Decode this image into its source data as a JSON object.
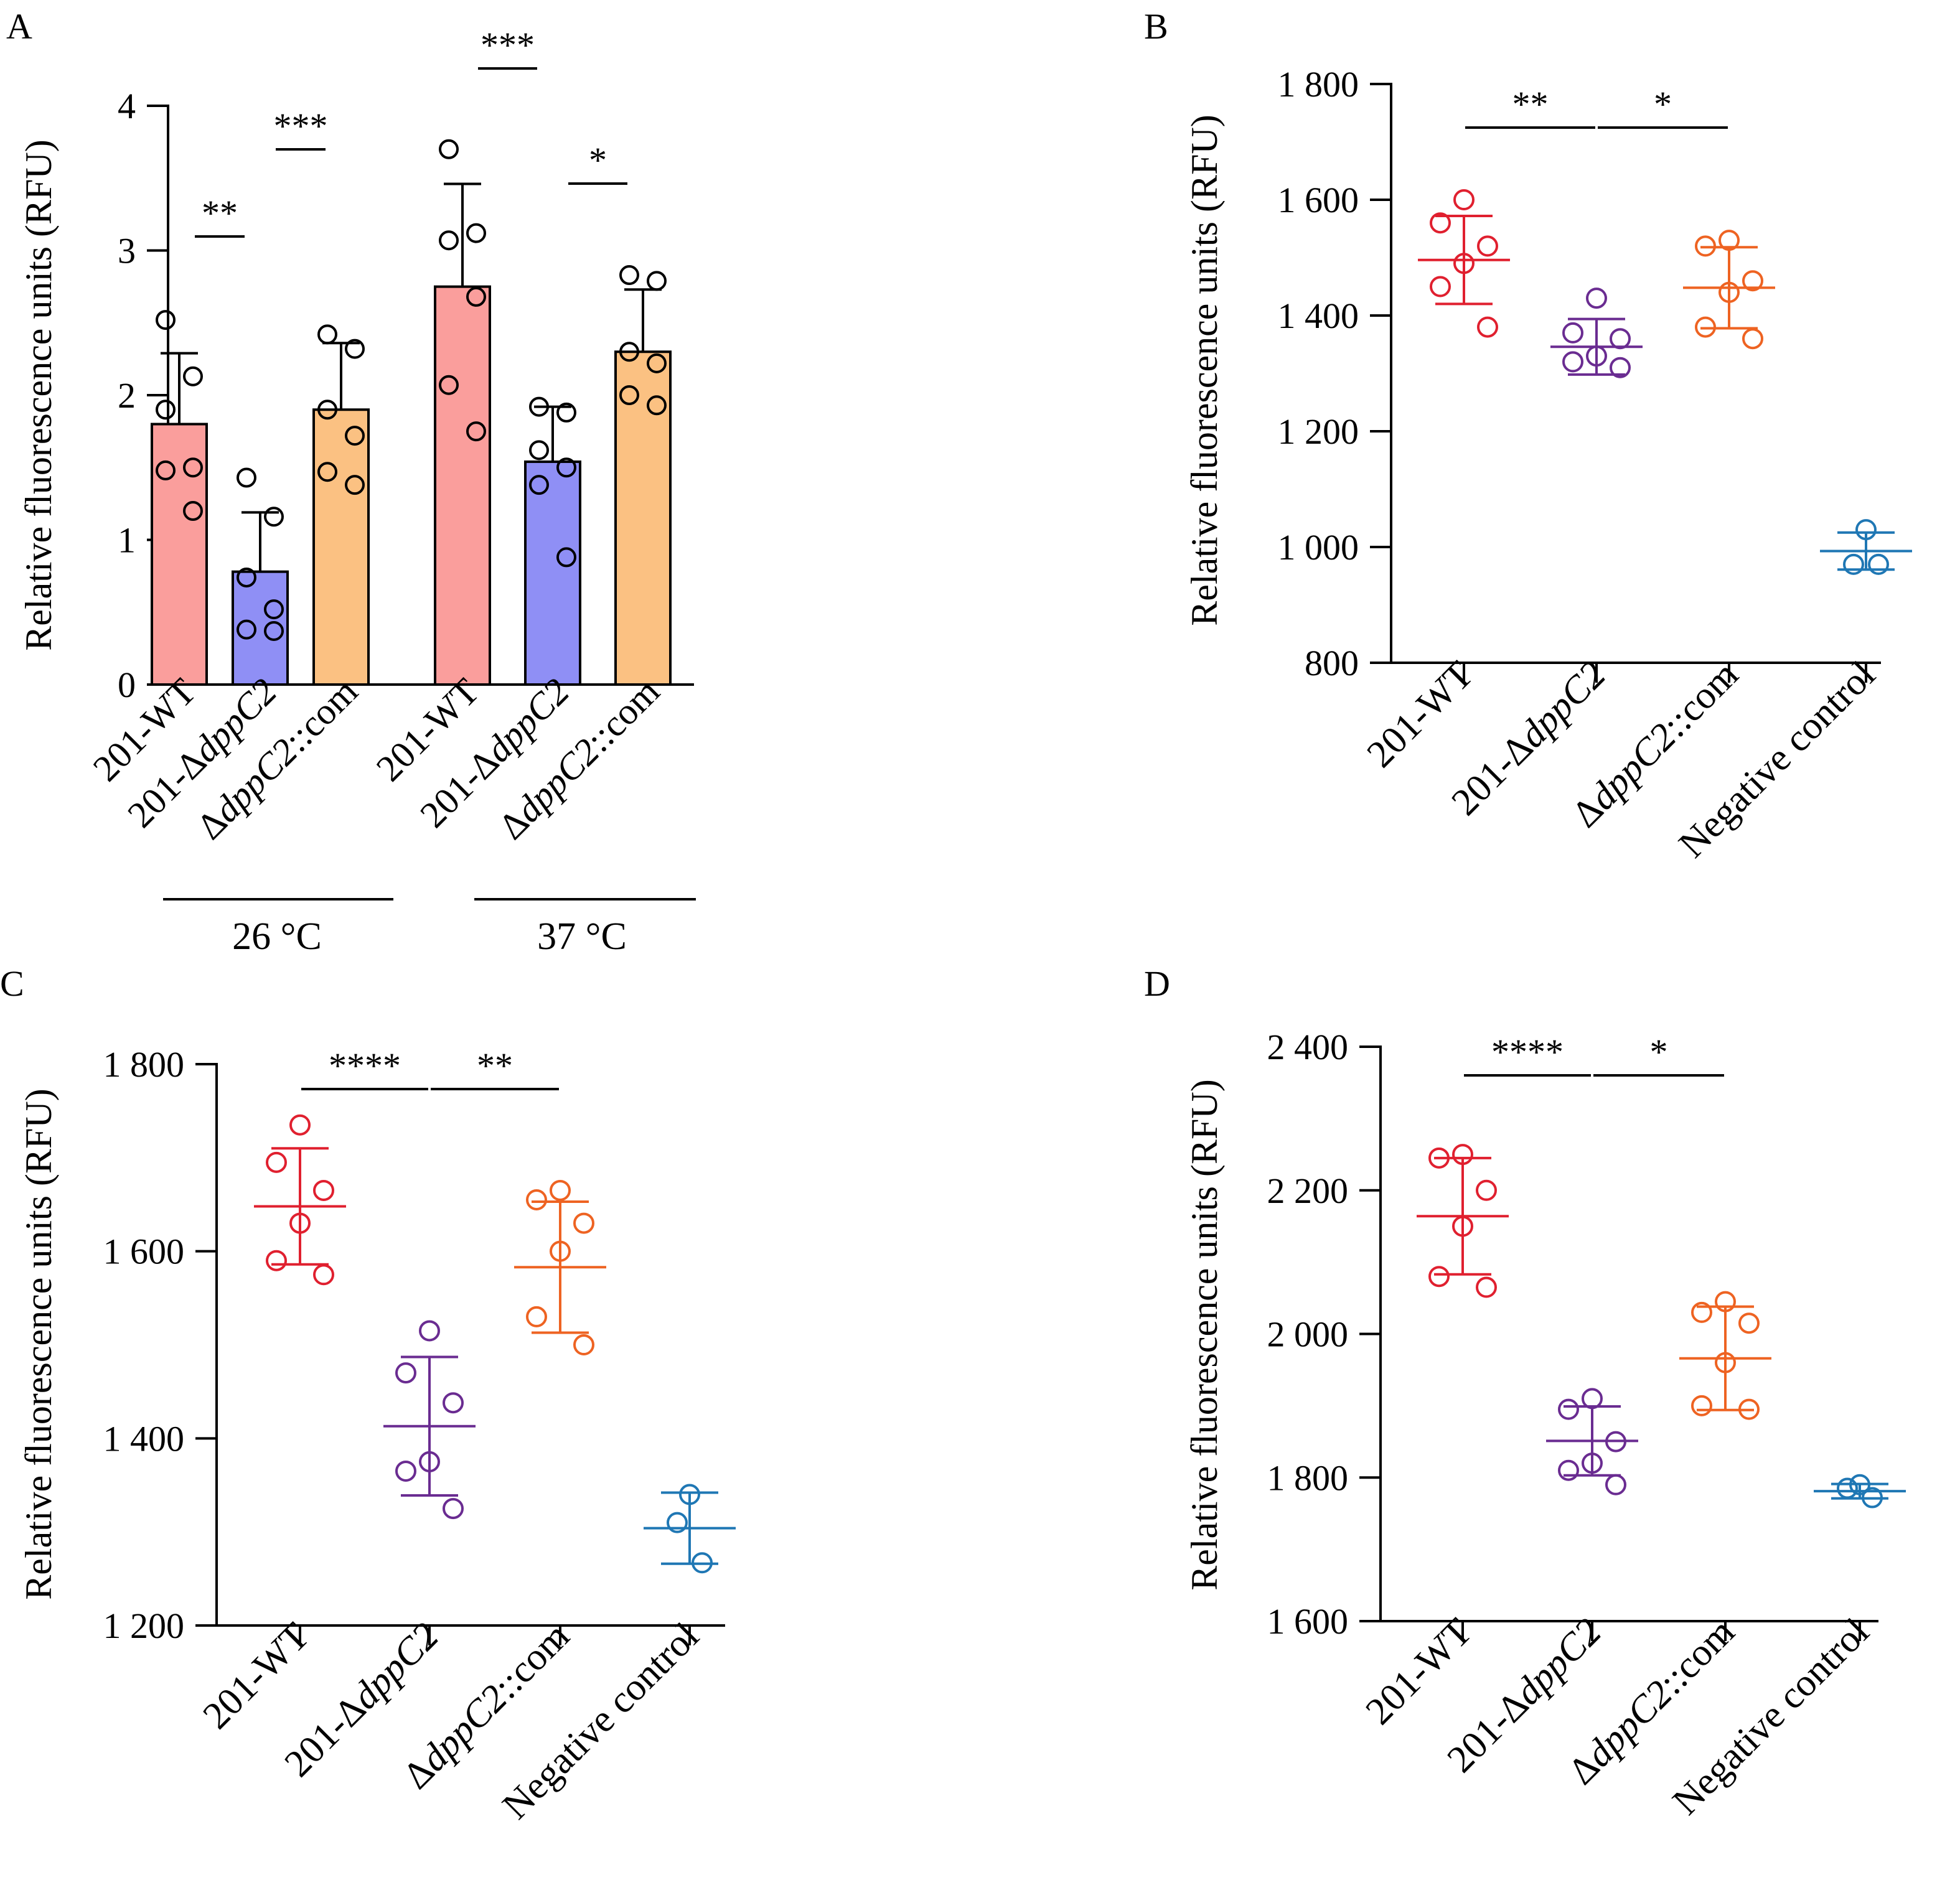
{
  "figure": {
    "ylabel": "Relative fluorescence units (RFU)",
    "colors": {
      "wt_bar": "#FA9E9C",
      "mut_bar": "#8F8FF5",
      "com_bar": "#FBC182",
      "wt": "#E0202F",
      "mut": "#6A2C91",
      "com": "#EE6322",
      "neg": "#1F77B4",
      "ink": "#000000"
    }
  },
  "chart_data": [
    {
      "panel": "A",
      "type": "bar",
      "ylabel": "Relative fluorescence units (RFU)",
      "ylim": [
        0,
        4
      ],
      "yticks": [
        0,
        1,
        2,
        3,
        4
      ],
      "ytick_labels": [
        "0",
        "1",
        "2",
        "3",
        "4"
      ],
      "categories": [
        "201-WT",
        "201-ΔdppC2",
        "ΔdppC2::com",
        "201-WT",
        "201-ΔdppC2",
        "ΔdppC2::com"
      ],
      "groups": [
        {
          "label": "26 °C",
          "categories": [
            "201-WT",
            "201-ΔdppC2",
            "ΔdppC2::com"
          ]
        },
        {
          "label": "37 °C",
          "categories": [
            "201-WT",
            "201-ΔdppC2",
            "ΔdppC2::com"
          ]
        }
      ],
      "series": [
        {
          "group": "26 °C",
          "category": "201-WT",
          "color": "wt_bar",
          "mean": 1.8,
          "sd": 0.49,
          "points": [
            2.52,
            2.13,
            1.9,
            1.5,
            1.48,
            1.2
          ]
        },
        {
          "group": "26 °C",
          "category": "201-ΔdppC2",
          "color": "mut_bar",
          "mean": 0.78,
          "sd": 0.41,
          "points": [
            1.43,
            1.16,
            0.74,
            0.52,
            0.38,
            0.37
          ]
        },
        {
          "group": "26 °C",
          "category": "ΔdppC2::com",
          "color": "com_bar",
          "mean": 1.9,
          "sd": 0.46,
          "points": [
            2.42,
            2.32,
            1.9,
            1.72,
            1.47,
            1.38
          ]
        },
        {
          "group": "37 °C",
          "category": "201-WT",
          "color": "wt_bar",
          "mean": 2.75,
          "sd": 0.71,
          "points": [
            3.7,
            3.12,
            3.07,
            2.68,
            2.07,
            1.75
          ]
        },
        {
          "group": "37 °C",
          "category": "201-ΔdppC2",
          "color": "mut_bar",
          "mean": 1.54,
          "sd": 0.38,
          "points": [
            1.92,
            1.88,
            1.62,
            1.5,
            1.38,
            0.88
          ]
        },
        {
          "group": "37 °C",
          "category": "ΔdppC2::com",
          "color": "com_bar",
          "mean": 2.3,
          "sd": 0.43,
          "points": [
            2.83,
            2.79,
            2.3,
            2.22,
            2.0,
            1.93
          ]
        }
      ],
      "significance": [
        {
          "from": 0,
          "to": 1,
          "label": "**"
        },
        {
          "from": 1,
          "to": 2,
          "label": "***"
        },
        {
          "from": 3,
          "to": 4,
          "label": "***"
        },
        {
          "from": 4,
          "to": 5,
          "label": "*"
        }
      ]
    },
    {
      "panel": "B",
      "type": "scatter",
      "ylabel": "Relative fluorescence units (RFU)",
      "ylim": [
        800,
        1800
      ],
      "yticks": [
        800,
        1000,
        1200,
        1400,
        1600,
        1800
      ],
      "ytick_labels": [
        "800",
        "1 000",
        "1 200",
        "1 400",
        "1 600",
        "1 800"
      ],
      "categories": [
        "201-WT",
        "201-ΔdppC2",
        "ΔdppC2::com",
        "Negative control"
      ],
      "series": [
        {
          "category": "201-WT",
          "color": "wt",
          "mean": 1496,
          "sd": 76,
          "points": [
            1600,
            1560,
            1520,
            1490,
            1450,
            1380
          ]
        },
        {
          "category": "201-ΔdppC2",
          "color": "mut",
          "mean": 1346,
          "sd": 48,
          "points": [
            1430,
            1370,
            1360,
            1330,
            1320,
            1310
          ]
        },
        {
          "category": "ΔdppC2::com",
          "color": "com",
          "mean": 1448,
          "sd": 70,
          "points": [
            1530,
            1520,
            1460,
            1440,
            1380,
            1360
          ]
        },
        {
          "category": "Negative control",
          "color": "neg",
          "mean": 993,
          "sd": 32,
          "points": [
            1030,
            970,
            970
          ]
        }
      ],
      "significance": [
        {
          "from": 0,
          "to": 1,
          "label": "**"
        },
        {
          "from": 1,
          "to": 2,
          "label": "*"
        }
      ]
    },
    {
      "panel": "C",
      "type": "scatter",
      "ylabel": "Relative fluorescence units (RFU)",
      "ylim": [
        1200,
        1800
      ],
      "yticks": [
        1200,
        1400,
        1600,
        1800
      ],
      "ytick_labels": [
        "1 200",
        "1 400",
        "1 600",
        "1 800"
      ],
      "categories": [
        "201-WT",
        "201-ΔdppC2",
        "ΔdppC2::com",
        "Negative control"
      ],
      "series": [
        {
          "category": "201-WT",
          "color": "wt",
          "mean": 1648,
          "sd": 62,
          "points": [
            1735,
            1695,
            1665,
            1630,
            1590,
            1575
          ]
        },
        {
          "category": "201-ΔdppC2",
          "color": "mut",
          "mean": 1413,
          "sd": 74,
          "points": [
            1515,
            1470,
            1438,
            1375,
            1365,
            1325
          ]
        },
        {
          "category": "ΔdppC2::com",
          "color": "com",
          "mean": 1583,
          "sd": 70,
          "points": [
            1665,
            1655,
            1630,
            1600,
            1530,
            1500
          ]
        },
        {
          "category": "Negative control",
          "color": "neg",
          "mean": 1304,
          "sd": 38,
          "points": [
            1340,
            1310,
            1267
          ]
        }
      ],
      "significance": [
        {
          "from": 0,
          "to": 1,
          "label": "****"
        },
        {
          "from": 1,
          "to": 2,
          "label": "**"
        }
      ]
    },
    {
      "panel": "D",
      "type": "scatter",
      "ylabel": "Relative fluorescence units (RFU)",
      "ylim": [
        1600,
        2400
      ],
      "yticks": [
        1600,
        1800,
        2000,
        2200,
        2400
      ],
      "ytick_labels": [
        "1 600",
        "1 800",
        "2 000",
        "2 200",
        "2 400"
      ],
      "categories": [
        "201-WT",
        "201-ΔdppC2",
        "ΔdppC2::com",
        "Negative control"
      ],
      "series": [
        {
          "category": "201-WT",
          "color": "wt",
          "mean": 2164,
          "sd": 81,
          "points": [
            2250,
            2245,
            2200,
            2150,
            2080,
            2065
          ]
        },
        {
          "category": "201-ΔdppC2",
          "color": "mut",
          "mean": 1851,
          "sd": 48,
          "points": [
            1910,
            1895,
            1850,
            1820,
            1810,
            1790
          ]
        },
        {
          "category": "ΔdppC2::com",
          "color": "com",
          "mean": 1966,
          "sd": 72,
          "points": [
            2045,
            2030,
            2015,
            1960,
            1900,
            1895
          ]
        },
        {
          "category": "Negative control",
          "color": "neg",
          "mean": 1781,
          "sd": 10,
          "points": [
            1790,
            1785,
            1772
          ]
        }
      ],
      "significance": [
        {
          "from": 0,
          "to": 1,
          "label": "****"
        },
        {
          "from": 1,
          "to": 2,
          "label": "*"
        }
      ]
    }
  ]
}
